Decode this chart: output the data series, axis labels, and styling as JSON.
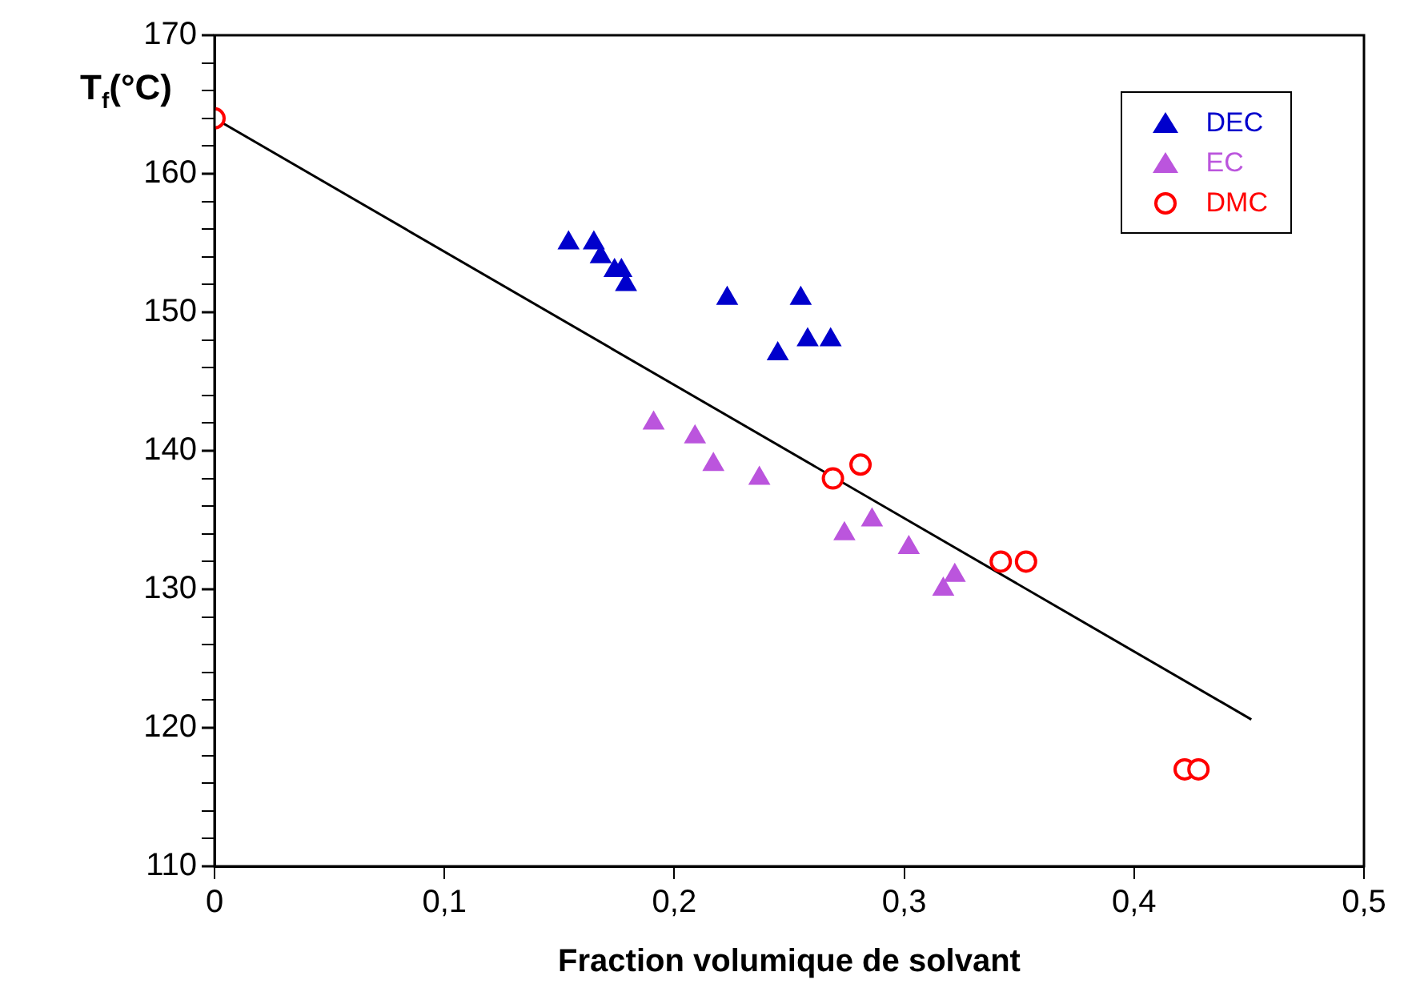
{
  "chart_data": {
    "type": "scatter",
    "xlabel": "Fraction volumique de solvant",
    "ylabel": "T$_{f}$(°C)",
    "xlim": [
      0,
      0.5
    ],
    "xticks": [
      0,
      {
        "value": 0.1,
        "label": "0,1"
      },
      {
        "value": 0.2,
        "label": "0,2"
      },
      {
        "value": 0.3,
        "label": "0,3"
      },
      {
        "value": 0.4,
        "label": "0,4"
      },
      {
        "value": 0.5,
        "label": "0,5"
      }
    ],
    "ylim": [
      110,
      170
    ],
    "yticks": [
      110,
      {
        "value": 112,
        "label": null
      },
      {
        "value": 114,
        "label": null
      },
      {
        "value": 116,
        "label": null
      },
      {
        "value": 118,
        "label": null
      },
      120,
      {
        "value": 122,
        "label": null
      },
      {
        "value": 124,
        "label": null
      },
      {
        "value": 126,
        "label": null
      },
      {
        "value": 128,
        "label": null
      },
      130,
      {
        "value": 132,
        "label": null
      },
      {
        "value": 134,
        "label": null
      },
      {
        "value": 136,
        "label": null
      },
      {
        "value": 138,
        "label": null
      },
      140,
      {
        "value": 142,
        "label": null
      },
      {
        "value": 144,
        "label": null
      },
      {
        "value": 146,
        "label": null
      },
      {
        "value": 148,
        "label": null
      },
      150,
      {
        "value": 152,
        "label": null
      },
      {
        "value": 154,
        "label": null
      },
      {
        "value": 156,
        "label": null
      },
      {
        "value": 158,
        "label": null
      },
      160,
      {
        "value": 162,
        "label": null
      },
      {
        "value": 164,
        "label": null
      },
      {
        "value": 166,
        "label": null
      },
      {
        "value": 168,
        "label": null
      },
      170
    ],
    "grid": false,
    "legend": "top right",
    "series": [
      {
        "name": "DEC",
        "color": "#0000cc",
        "marker": "triangle",
        "x": [
          0.154,
          0.165,
          0.168,
          0.174,
          0.177,
          0.179,
          0.223,
          0.255,
          0.245,
          0.258,
          0.268
        ],
        "values": [
          155,
          155,
          154,
          153,
          153,
          152,
          151,
          151,
          147,
          148,
          148
        ]
      },
      {
        "name": "EC",
        "color": "#bb55dd",
        "marker": "triangle",
        "x": [
          0.191,
          0.209,
          0.217,
          0.237,
          0.274,
          0.286,
          0.302,
          0.322,
          0.317
        ],
        "values": [
          142,
          141,
          139,
          138,
          134,
          135,
          133,
          131,
          130
        ]
      },
      {
        "name": "DMC",
        "color": "#ff0000",
        "marker": "circle",
        "x": [
          0,
          0.269,
          0.281,
          0.342,
          0.353,
          0.422,
          0.428
        ],
        "values": [
          164,
          138,
          139,
          132,
          132,
          117,
          117
        ]
      },
      {
        "type": "line",
        "color": "#000000",
        "marker": "none",
        "x": [
          0,
          0.451
        ],
        "values": [
          164,
          120.6
        ]
      }
    ]
  }
}
